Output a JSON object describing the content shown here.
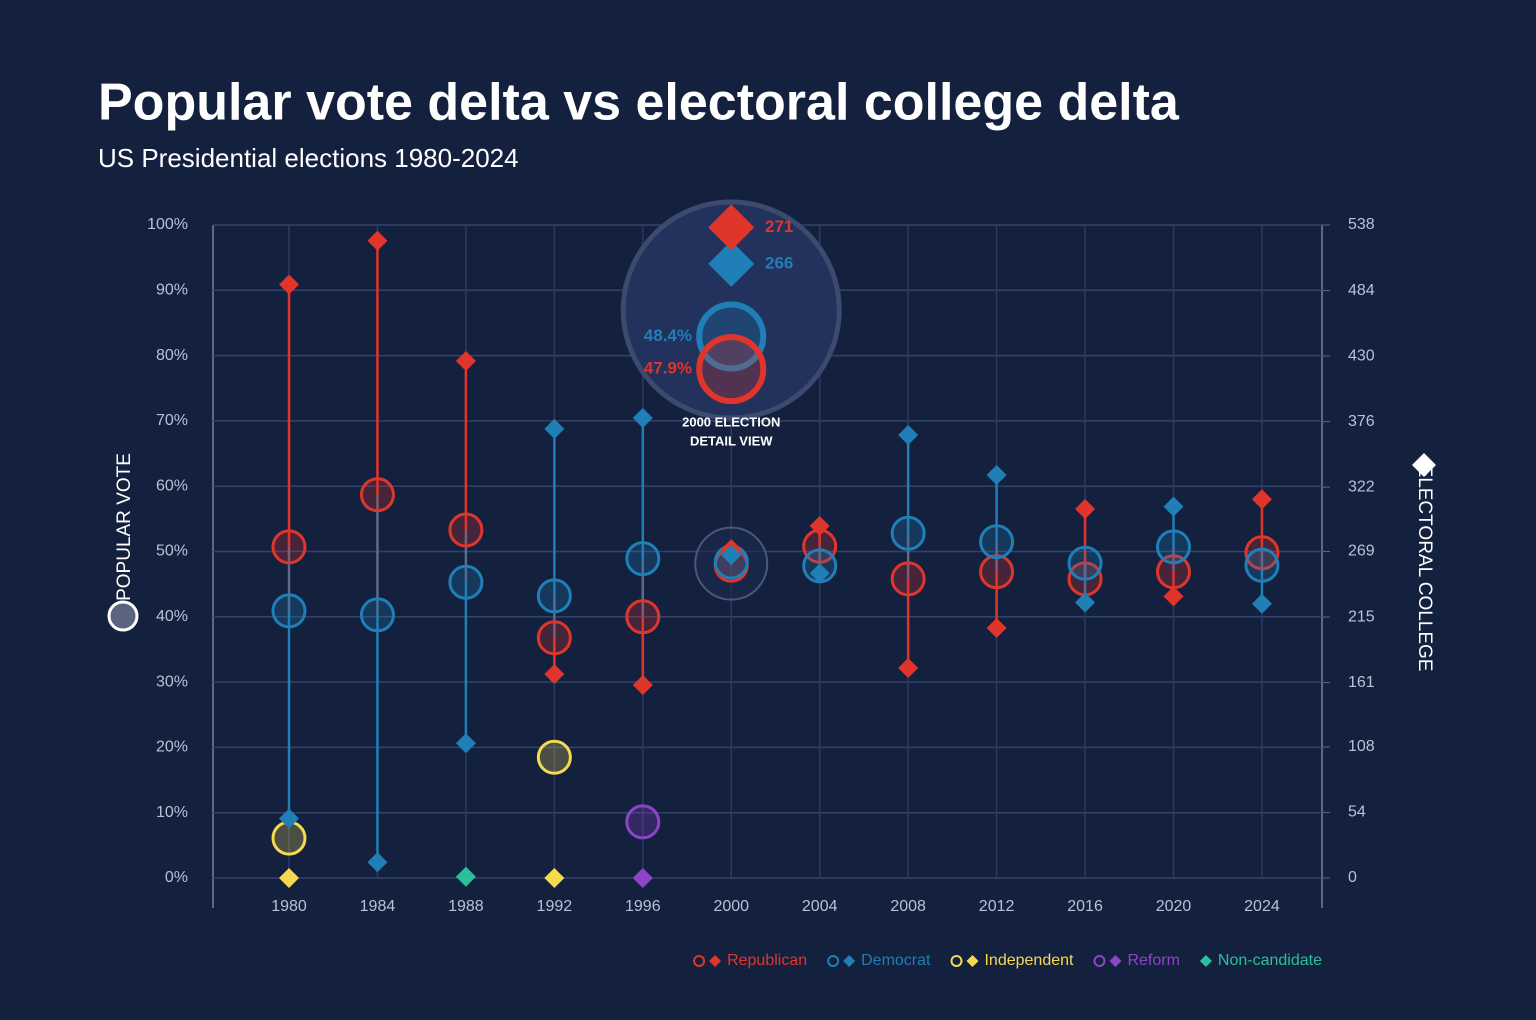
{
  "chart_data": {
    "type": "dumbbell",
    "title": "Popular vote delta vs electoral college delta",
    "subtitle": "US Presidential elections 1980-2024",
    "y_label": "POPULAR VOTE",
    "y2_label": "ELECTORAL COLLEGE",
    "categories": [
      "1980",
      "1984",
      "1988",
      "1992",
      "1996",
      "2000",
      "2004",
      "2008",
      "2012",
      "2016",
      "2020",
      "2024"
    ],
    "ylim": [
      0,
      100
    ],
    "yticks": [
      {
        "value": 0,
        "label": "0%"
      },
      {
        "value": 10,
        "label": "10%"
      },
      {
        "value": 20,
        "label": "20%"
      },
      {
        "value": 30,
        "label": "30%"
      },
      {
        "value": 40,
        "label": "40%"
      },
      {
        "value": 50,
        "label": "50%"
      },
      {
        "value": 60,
        "label": "60%"
      },
      {
        "value": 70,
        "label": "70%"
      },
      {
        "value": 80,
        "label": "80%"
      },
      {
        "value": 90,
        "label": "90%"
      },
      {
        "value": 100,
        "label": "100%"
      }
    ],
    "y2lim": [
      0,
      538
    ],
    "y2ticks": [
      0,
      54,
      108,
      161,
      215,
      269,
      322,
      376,
      430,
      484,
      538
    ],
    "grid": true,
    "legend": "bottom-right",
    "detail_title": [
      "2000 ELECTION",
      "DETAIL VIEW"
    ],
    "series": [
      {
        "name": "Republican",
        "color": "#e0352b",
        "values": [
          50.7,
          58.7,
          53.3,
          36.8,
          40.0,
          47.9,
          50.8,
          45.8,
          46.9,
          45.8,
          46.9,
          49.8
        ],
        "value_labels": [
          null,
          null,
          null,
          null,
          null,
          "47.9%",
          null,
          null,
          null,
          null,
          null,
          null
        ],
        "electoral": [
          489,
          525,
          426,
          168,
          159,
          271,
          290,
          173,
          206,
          304,
          232,
          312
        ],
        "axis": "y2"
      },
      {
        "name": "Democrat",
        "color": "#1f7fb6",
        "values": [
          40.9,
          40.3,
          45.3,
          43.2,
          48.9,
          48.4,
          47.8,
          52.8,
          51.5,
          48.2,
          50.7,
          47.9
        ],
        "value_labels": [
          null,
          null,
          null,
          null,
          null,
          "48.4%",
          null,
          null,
          null,
          null,
          null,
          null
        ],
        "electoral": [
          49,
          13,
          111,
          370,
          379,
          266,
          251,
          365,
          332,
          227,
          306,
          226
        ],
        "axis": "y2"
      },
      {
        "name": "Independent",
        "color": "#f5d94e",
        "values": [
          6.1,
          null,
          null,
          18.5,
          null,
          null,
          null,
          null,
          null,
          null,
          null,
          null
        ],
        "electoral": [
          0,
          null,
          null,
          0,
          null,
          null,
          null,
          null,
          null,
          null,
          null,
          null
        ],
        "axis": "y2"
      },
      {
        "name": "Reform",
        "color": "#8e44c7",
        "values": [
          null,
          null,
          null,
          null,
          8.6,
          null,
          null,
          null,
          null,
          null,
          null,
          null
        ],
        "electoral": [
          null,
          null,
          null,
          null,
          0,
          null,
          null,
          null,
          null,
          null,
          null,
          null
        ],
        "axis": "y2"
      },
      {
        "name": "Non-candidate",
        "color": "#2bbf9a",
        "values": [
          null,
          null,
          null,
          null,
          null,
          null,
          null,
          null,
          null,
          null,
          null,
          null
        ],
        "electoral": [
          null,
          null,
          1,
          null,
          null,
          null,
          null,
          null,
          null,
          null,
          null,
          null
        ],
        "axis": "y2"
      }
    ]
  }
}
